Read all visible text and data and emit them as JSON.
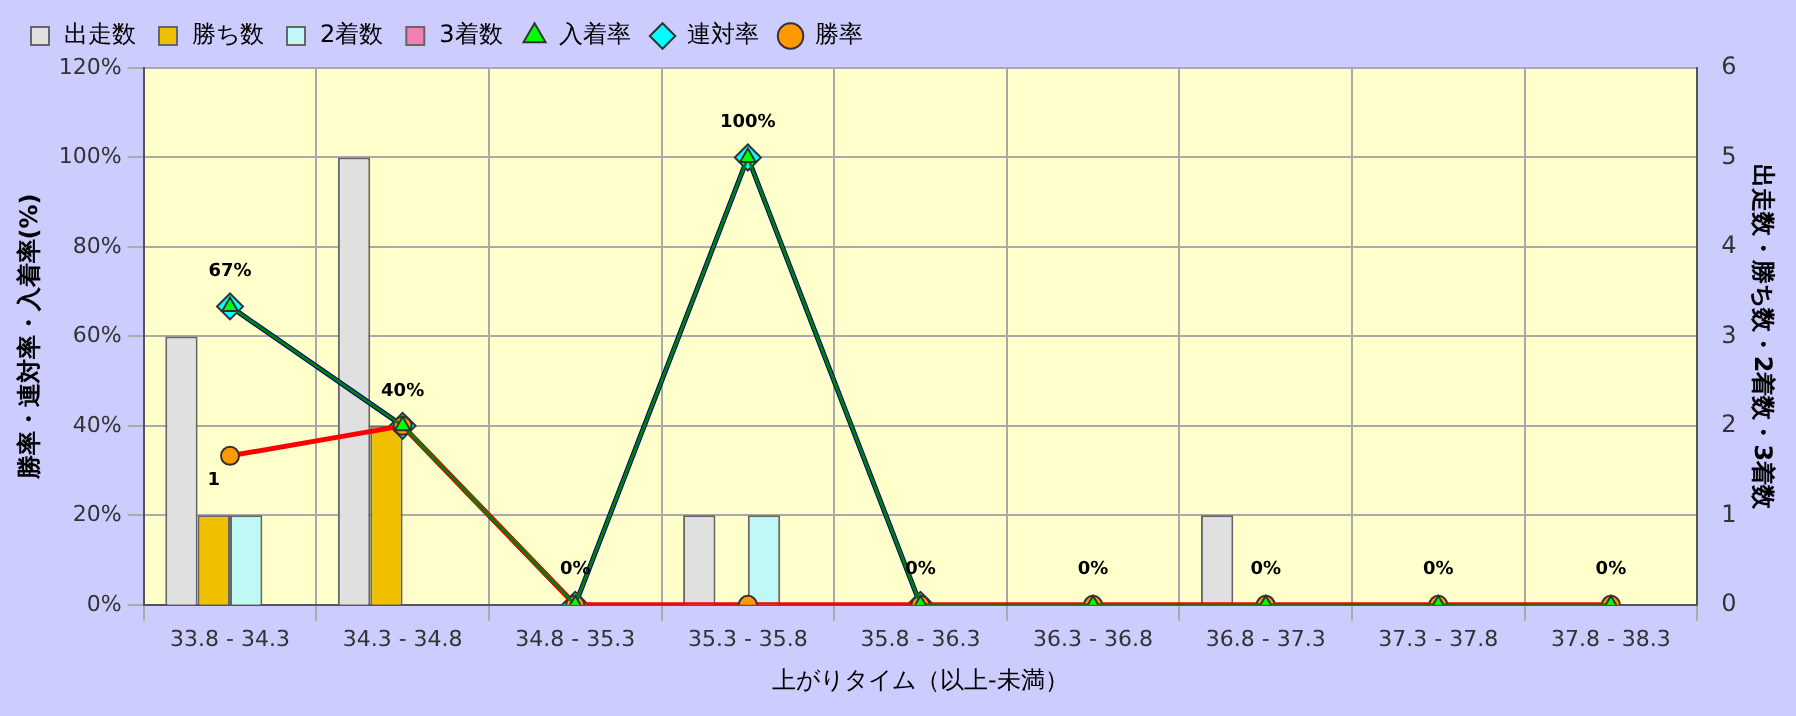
{
  "chart_data": {
    "type": "bar",
    "xlabel": "上がりタイム（以上-未満）",
    "ylabel": "勝率・連対率・入着率(%)",
    "y2label": "出走数・勝ち数・2着数・3着数",
    "categories": [
      "33.8 - 34.3",
      "34.3 - 34.8",
      "34.8 - 35.3",
      "35.3 - 35.8",
      "35.8 - 36.3",
      "36.3 - 36.8",
      "36.8 - 37.3",
      "37.3 - 37.8",
      "37.8 - 38.3"
    ],
    "series": [
      {
        "name": "出走数",
        "axis": "y2",
        "color": "#e0e0e0",
        "values": [
          3,
          5,
          0,
          1,
          0,
          0,
          1,
          0,
          0
        ]
      },
      {
        "name": "勝ち数",
        "axis": "y2",
        "color": "#f0c000",
        "values": [
          1,
          2,
          0,
          0,
          0,
          0,
          0,
          0,
          0
        ],
        "value_labels": [
          "1",
          null,
          null,
          null,
          null,
          null,
          null,
          null,
          null
        ]
      },
      {
        "name": "2着数",
        "axis": "y2",
        "color": "#c0f8f8",
        "values": [
          1,
          0,
          0,
          1,
          0,
          0,
          0,
          0,
          0
        ]
      },
      {
        "name": "3着数",
        "axis": "y2",
        "color": "#f080b0",
        "values": [
          0,
          0,
          0,
          0,
          0,
          0,
          0,
          0,
          0
        ]
      },
      {
        "name": "入着率",
        "type": "line",
        "color": "#008000",
        "marker": "triangle",
        "values": [
          66.7,
          40,
          0,
          100,
          0,
          0,
          0,
          0,
          0
        ],
        "value_labels": [
          "67%",
          "40%",
          "0%",
          "100%",
          "0%",
          "0%",
          "0%",
          "0%",
          "0%"
        ]
      },
      {
        "name": "連対率",
        "type": "line",
        "color": "#000080",
        "marker": "diamond",
        "values": [
          66.7,
          40,
          0,
          100,
          0,
          null,
          null,
          null,
          null
        ]
      },
      {
        "name": "勝率",
        "type": "line",
        "color": "#ff0000",
        "marker": "circle",
        "values": [
          33.3,
          40,
          0,
          0,
          0,
          0,
          0,
          0,
          0
        ]
      }
    ],
    "ylim": [
      0,
      120
    ],
    "yticks": [
      {
        "value": 0,
        "label": "0%"
      },
      {
        "value": 20,
        "label": "20%"
      },
      {
        "value": 40,
        "label": "40%"
      },
      {
        "value": 60,
        "label": "60%"
      },
      {
        "value": 80,
        "label": "80%"
      },
      {
        "value": 100,
        "label": "100%"
      },
      {
        "value": 120,
        "label": "120%"
      }
    ],
    "y2lim": [
      0,
      6
    ],
    "y2ticks": [
      0,
      1,
      2,
      3,
      4,
      5,
      6
    ],
    "grid": true,
    "legend": "top"
  }
}
